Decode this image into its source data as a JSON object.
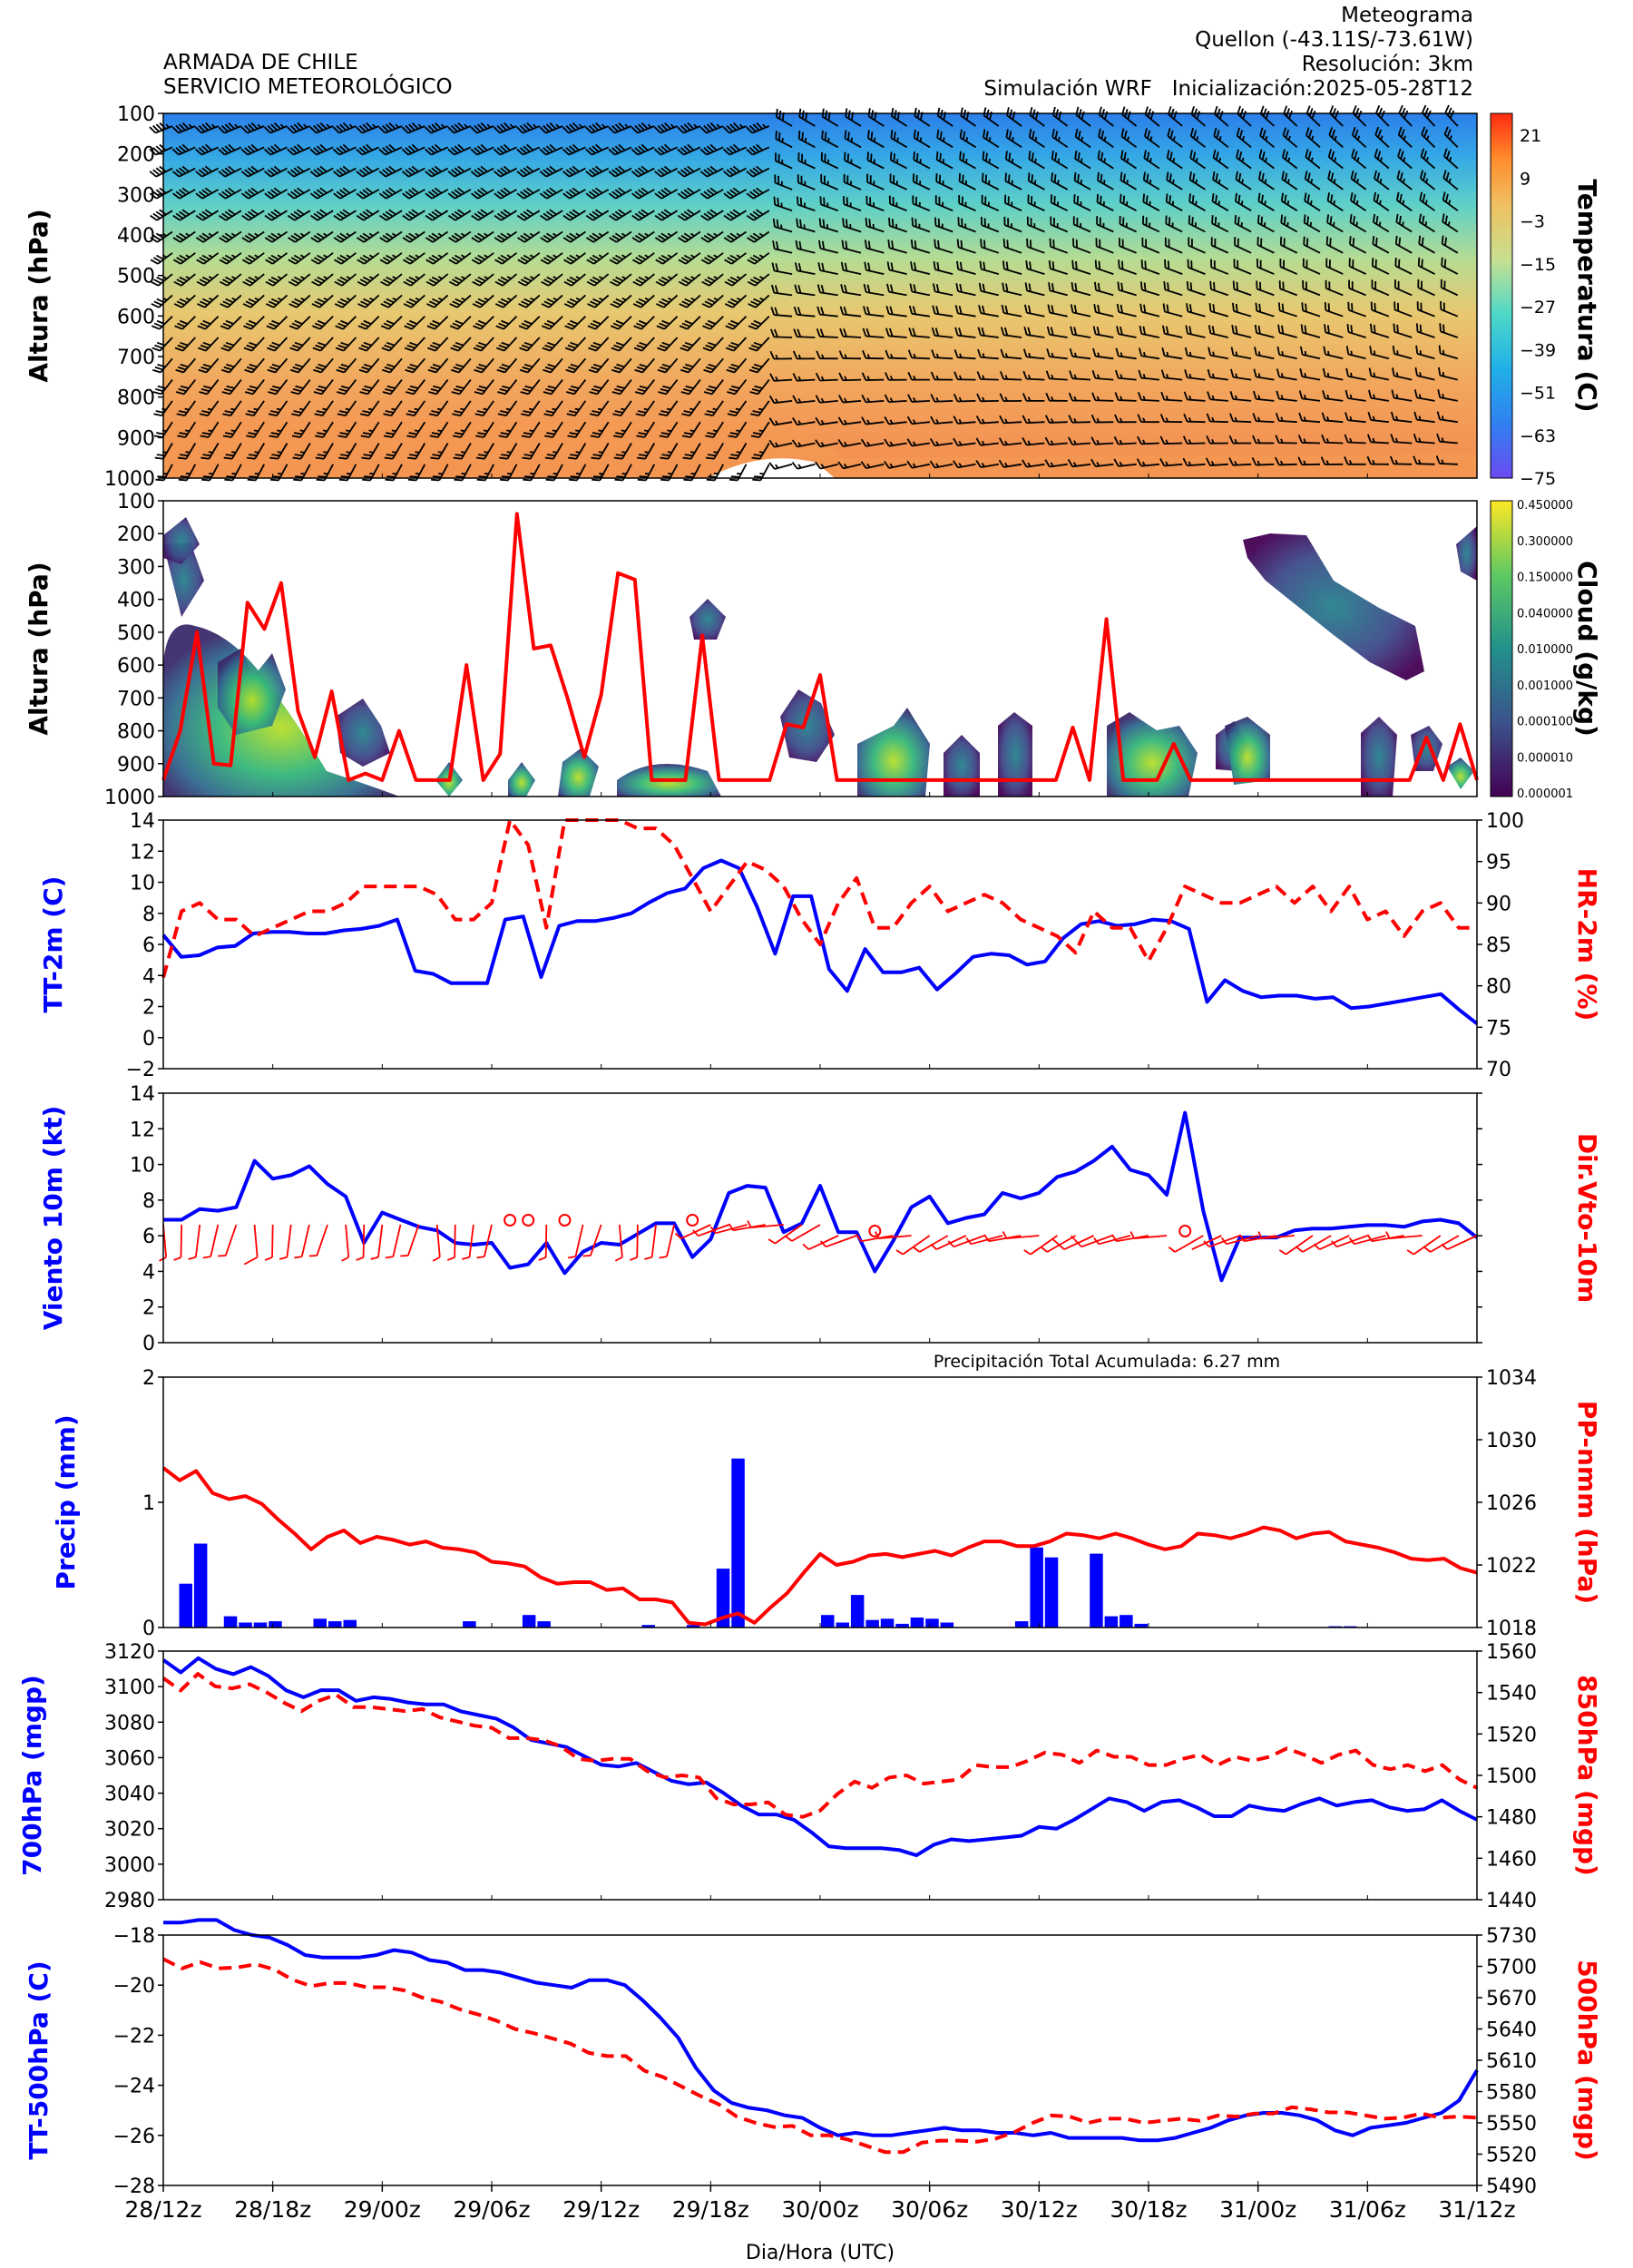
{
  "header": {
    "org_line1": "ARMADA DE CHILE",
    "org_line2": "SERVICIO METEOROLÓGICO",
    "product": "Meteograma",
    "location": "Quellon  (-43.11S/-73.61W)",
    "resolution": "Resolución: 3km",
    "model": "Simulación WRF",
    "init": "Inicialización:2025-05-28T12"
  },
  "xaxis": {
    "label": "Dia/Hora (UTC)",
    "ticks": [
      "28/12z",
      "28/18z",
      "29/00z",
      "29/06z",
      "29/12z",
      "29/18z",
      "30/00z",
      "30/06z",
      "30/12z",
      "30/18z",
      "31/00z",
      "31/06z",
      "31/12z"
    ],
    "hours_per_tick": 6
  },
  "colors": {
    "blue": "#0000ff",
    "red": "#ff0000"
  },
  "chart_data": [
    {
      "type": "heatmap",
      "ylabel": "Altura (hPa)",
      "colorbar_label": "Temperatura (C)",
      "colorbar_ticks": [
        "21",
        "9",
        "−3",
        "−15",
        "−27",
        "−39",
        "−51",
        "−63",
        "−75"
      ],
      "yticks": [
        "100",
        "200",
        "300",
        "400",
        "500",
        "600",
        "700",
        "800",
        "900",
        "1000"
      ],
      "ylim": [
        1000,
        100
      ],
      "overlay": "wind barbs",
      "range_c": [
        -75,
        27
      ]
    },
    {
      "type": "heatmap",
      "ylabel": "Altura (hPa)",
      "colorbar_label": "Cloud (g/kg)",
      "colorbar_ticks": [
        "0.450000",
        "0.300000",
        "0.150000",
        "0.040000",
        "0.010000",
        "0.001000",
        "0.000100",
        "0.000010",
        "0.000001"
      ],
      "yticks": [
        "100",
        "200",
        "300",
        "400",
        "500",
        "600",
        "700",
        "800",
        "900",
        "1000"
      ],
      "ylim": [
        1000,
        100
      ],
      "line_series_hpa": [
        950,
        800,
        500,
        900,
        905,
        410,
        490,
        350,
        740,
        880,
        680,
        950,
        930,
        950,
        800,
        950,
        950,
        950,
        600,
        950,
        870,
        140,
        550,
        540,
        700,
        880,
        690,
        320,
        340,
        950,
        950,
        950,
        510,
        950,
        950,
        950,
        950,
        780,
        790,
        630,
        950,
        950,
        950,
        950,
        950,
        950,
        950,
        950,
        950,
        950,
        950,
        950,
        950,
        950,
        790,
        950,
        460,
        950,
        950,
        950,
        840,
        950,
        950,
        950,
        950,
        950,
        950,
        950,
        950,
        950,
        950,
        950,
        950,
        950,
        950,
        820,
        950,
        780,
        950
      ]
    },
    {
      "type": "line",
      "ylabel": "TT-2m (C)",
      "y2label": "HR-2m (%)",
      "yticks": [
        "−2",
        "0",
        "2",
        "4",
        "6",
        "8",
        "10",
        "12",
        "14"
      ],
      "y2ticks": [
        "70",
        "75",
        "80",
        "85",
        "90",
        "95",
        "100"
      ],
      "ylim": [
        -2,
        14
      ],
      "y2lim": [
        70,
        100
      ],
      "series": [
        {
          "axis": "left",
          "style": "solid",
          "values": [
            6.6,
            5.2,
            5.3,
            5.8,
            5.9,
            6.7,
            6.8,
            6.8,
            6.7,
            6.7,
            6.9,
            7.0,
            7.2,
            7.6,
            4.3,
            4.1,
            3.5,
            3.5,
            3.5,
            7.6,
            7.8,
            3.9,
            7.2,
            7.5,
            7.5,
            7.7,
            8.0,
            8.7,
            9.3,
            9.6,
            10.9,
            11.4,
            10.9,
            8.4,
            5.4,
            9.1,
            9.1,
            4.4,
            3.0,
            5.7,
            4.2,
            4.2,
            4.5,
            3.1,
            4.1,
            5.2,
            5.4,
            5.3,
            4.7,
            4.9,
            6.4,
            7.3,
            7.5,
            7.2,
            7.3,
            7.6,
            7.5,
            7.0,
            2.3,
            3.7,
            3.0,
            2.6,
            2.7,
            2.7,
            2.5,
            2.6,
            1.9,
            2.0,
            2.2,
            2.4,
            2.6,
            2.8,
            1.8,
            0.9
          ]
        },
        {
          "axis": "right",
          "style": "dashed",
          "values": [
            81,
            89,
            90,
            88,
            88,
            86,
            87,
            88,
            89,
            89,
            90,
            92,
            92,
            92,
            92,
            91,
            88,
            88,
            90,
            100,
            97,
            87,
            100,
            100,
            100,
            100,
            99,
            99,
            97,
            93,
            89,
            92,
            95,
            94,
            92,
            88,
            85,
            90,
            93,
            87,
            87,
            90,
            92,
            89,
            90,
            91,
            90,
            88,
            87,
            86,
            84,
            89,
            87,
            87,
            83,
            87,
            92,
            91,
            90,
            90,
            91,
            92,
            90,
            92,
            89,
            92,
            88,
            89,
            86,
            89,
            90,
            87,
            87
          ]
        }
      ]
    },
    {
      "type": "line",
      "ylabel": "Viento 10m (kt)",
      "y2label": "Dir.Vto-10m",
      "yticks": [
        "0",
        "2",
        "4",
        "6",
        "8",
        "10",
        "12",
        "14"
      ],
      "ylim": [
        0,
        14
      ],
      "overlay": "wind barbs (10 m direction)",
      "series": [
        {
          "axis": "left",
          "style": "solid",
          "values": [
            6.9,
            6.9,
            7.5,
            7.4,
            7.6,
            10.2,
            9.2,
            9.4,
            9.9,
            8.9,
            8.2,
            5.6,
            7.3,
            6.9,
            6.5,
            6.3,
            5.6,
            5.5,
            5.6,
            4.2,
            4.4,
            5.6,
            3.9,
            5.1,
            5.6,
            5.5,
            6.1,
            6.7,
            6.7,
            4.8,
            5.8,
            8.4,
            8.8,
            8.7,
            6.2,
            6.7,
            8.8,
            6.2,
            6.2,
            4.0,
            5.7,
            7.6,
            8.2,
            6.7,
            7.0,
            7.2,
            8.4,
            8.1,
            8.4,
            9.3,
            9.6,
            10.2,
            11.0,
            9.7,
            9.4,
            8.3,
            12.9,
            7.4,
            3.5,
            5.9,
            5.9,
            5.9,
            6.3,
            6.4,
            6.4,
            6.5,
            6.6,
            6.6,
            6.5,
            6.8,
            6.9,
            6.7,
            5.9
          ]
        }
      ]
    },
    {
      "type": "bar",
      "ylabel": "Precip (mm)",
      "y2label": "PP-nmm (hPa)",
      "annotation": "Precipitación Total Acumulada: 6.27 mm",
      "yticks": [
        "0",
        "1",
        "2"
      ],
      "y2ticks": [
        "1018",
        "1022",
        "1026",
        "1030",
        "1034"
      ],
      "ylim": [
        0,
        2
      ],
      "y2lim": [
        1018,
        1034
      ],
      "bars_mm": [
        0,
        0.35,
        0.67,
        0,
        0.09,
        0.04,
        0.04,
        0.05,
        0,
        0,
        0.07,
        0.05,
        0.06,
        0,
        0,
        0,
        0,
        0,
        0,
        0,
        0.05,
        0,
        0,
        0,
        0.1,
        0.05,
        0,
        0,
        0,
        0,
        0,
        0,
        0.02,
        0,
        0,
        0.02,
        0,
        0.47,
        1.35,
        0,
        0,
        0,
        0,
        0,
        0.1,
        0.04,
        0.26,
        0.06,
        0.07,
        0.03,
        0.08,
        0.07,
        0.04,
        0,
        0,
        0,
        0,
        0.05,
        0.64,
        0.56,
        0,
        0,
        0.59,
        0.09,
        0.1,
        0.03,
        0,
        0,
        0,
        0,
        0,
        0,
        0,
        0,
        0,
        0,
        0,
        0,
        0.01,
        0.01,
        0,
        0,
        0,
        0,
        0,
        0,
        0,
        0
      ],
      "series": [
        {
          "axis": "right",
          "style": "solid",
          "values": [
            1028.2,
            1027.4,
            1028.0,
            1026.6,
            1026.2,
            1026.4,
            1025.9,
            1024.9,
            1024.0,
            1023.0,
            1023.8,
            1024.2,
            1023.4,
            1023.8,
            1023.6,
            1023.3,
            1023.5,
            1023.1,
            1023.0,
            1022.8,
            1022.2,
            1022.1,
            1021.9,
            1021.2,
            1020.8,
            1020.9,
            1020.9,
            1020.4,
            1020.5,
            1019.8,
            1019.8,
            1019.6,
            1018.3,
            1018.2,
            1018.6,
            1018.9,
            1018.3,
            1019.3,
            1020.2,
            1021.5,
            1022.7,
            1022.0,
            1022.2,
            1022.6,
            1022.7,
            1022.5,
            1022.7,
            1022.9,
            1022.6,
            1023.1,
            1023.5,
            1023.5,
            1023.2,
            1023.2,
            1023.5,
            1024.0,
            1023.9,
            1023.7,
            1024.0,
            1023.7,
            1023.3,
            1023.0,
            1023.2,
            1024.0,
            1023.9,
            1023.7,
            1024.0,
            1024.4,
            1024.2,
            1023.7,
            1024.0,
            1024.1,
            1023.5,
            1023.3,
            1023.1,
            1022.8,
            1022.4,
            1022.3,
            1022.4,
            1021.8,
            1021.5
          ]
        }
      ]
    },
    {
      "type": "line",
      "ylabel": "700hPa (mgp)",
      "y2label": "850hPa (mgp)",
      "yticks": [
        "2980",
        "3000",
        "3020",
        "3040",
        "3060",
        "3080",
        "3100",
        "3120"
      ],
      "y2ticks": [
        "1440",
        "1460",
        "1480",
        "1500",
        "1520",
        "1540",
        "1560"
      ],
      "ylim": [
        2980,
        3120
      ],
      "y2lim": [
        1440,
        1560
      ],
      "series": [
        {
          "axis": "left",
          "style": "solid",
          "values": [
            3115,
            3108,
            3116,
            3110,
            3107,
            3111,
            3106,
            3098,
            3094,
            3098,
            3098,
            3092,
            3094,
            3093,
            3091,
            3090,
            3090,
            3086,
            3084,
            3082,
            3077,
            3070,
            3068,
            3066,
            3061,
            3056,
            3055,
            3057,
            3052,
            3047,
            3045,
            3046,
            3040,
            3033,
            3028,
            3028,
            3025,
            3018,
            3010,
            3009,
            3009,
            3009,
            3008,
            3005,
            3011,
            3014,
            3013,
            3014,
            3015,
            3016,
            3021,
            3020,
            3025,
            3031,
            3037,
            3035,
            3030,
            3035,
            3036,
            3032,
            3027,
            3027,
            3033,
            3031,
            3030,
            3034,
            3037,
            3033,
            3035,
            3036,
            3032,
            3030,
            3031,
            3036,
            3030,
            3025
          ]
        },
        {
          "axis": "right",
          "style": "dashed",
          "values": [
            1547,
            1541,
            1549,
            1543,
            1542,
            1544,
            1540,
            1535,
            1531,
            1536,
            1539,
            1533,
            1533,
            1532,
            1531,
            1532,
            1528,
            1526,
            1524,
            1523,
            1518,
            1518,
            1517,
            1514,
            1508,
            1507,
            1508,
            1508,
            1502,
            1499,
            1500,
            1499,
            1489,
            1486,
            1486,
            1487,
            1481,
            1480,
            1483,
            1491,
            1497,
            1494,
            1499,
            1500,
            1496,
            1497,
            1498,
            1505,
            1504,
            1504,
            1507,
            1511,
            1510,
            1506,
            1512,
            1509,
            1509,
            1505,
            1505,
            1508,
            1510,
            1505,
            1509,
            1507,
            1509,
            1513,
            1510,
            1506,
            1510,
            1512,
            1505,
            1503,
            1505,
            1502,
            1505,
            1498,
            1494
          ]
        }
      ]
    },
    {
      "type": "line",
      "ylabel": "TT-500hPa (C)",
      "y2label": "500hPa (mgp)",
      "yticks": [
        "−28",
        "−26",
        "−24",
        "−22",
        "−20",
        "−18"
      ],
      "y2ticks": [
        "5490",
        "5520",
        "5550",
        "5580",
        "5610",
        "5640",
        "5670",
        "5700",
        "5730"
      ],
      "ylim": [
        -28,
        -18
      ],
      "y2lim": [
        5490,
        5730
      ],
      "series": [
        {
          "axis": "left",
          "style": "solid",
          "values": [
            -17.5,
            -17.5,
            -17.4,
            -17.4,
            -17.8,
            -18.0,
            -18.1,
            -18.4,
            -18.8,
            -18.9,
            -18.9,
            -18.9,
            -18.8,
            -18.6,
            -18.7,
            -19.0,
            -19.1,
            -19.4,
            -19.4,
            -19.5,
            -19.7,
            -19.9,
            -20.0,
            -20.1,
            -19.8,
            -19.8,
            -20.0,
            -20.6,
            -21.3,
            -22.1,
            -23.3,
            -24.2,
            -24.7,
            -24.9,
            -25.0,
            -25.2,
            -25.3,
            -25.7,
            -26.0,
            -25.9,
            -26.0,
            -26.0,
            -25.9,
            -25.8,
            -25.7,
            -25.8,
            -25.8,
            -25.9,
            -25.9,
            -26.0,
            -25.9,
            -26.1,
            -26.1,
            -26.1,
            -26.1,
            -26.2,
            -26.2,
            -26.1,
            -25.9,
            -25.7,
            -25.4,
            -25.2,
            -25.1,
            -25.1,
            -25.2,
            -25.4,
            -25.8,
            -26.0,
            -25.7,
            -25.6,
            -25.5,
            -25.3,
            -25.1,
            -24.6,
            -23.4
          ]
        },
        {
          "axis": "right",
          "style": "dashed",
          "values": [
            5707,
            5698,
            5704,
            5698,
            5699,
            5702,
            5697,
            5687,
            5681,
            5684,
            5684,
            5680,
            5680,
            5677,
            5670,
            5666,
            5659,
            5654,
            5648,
            5640,
            5636,
            5631,
            5626,
            5617,
            5614,
            5614,
            5600,
            5594,
            5585,
            5576,
            5568,
            5556,
            5550,
            5546,
            5547,
            5538,
            5538,
            5534,
            5528,
            5522,
            5522,
            5531,
            5533,
            5533,
            5532,
            5535,
            5541,
            5550,
            5557,
            5556,
            5550,
            5554,
            5554,
            5550,
            5552,
            5554,
            5552,
            5557,
            5556,
            5559,
            5559,
            5565,
            5563,
            5560,
            5560,
            5557,
            5554,
            5555,
            5559,
            5555,
            5556,
            5555
          ]
        }
      ]
    }
  ]
}
